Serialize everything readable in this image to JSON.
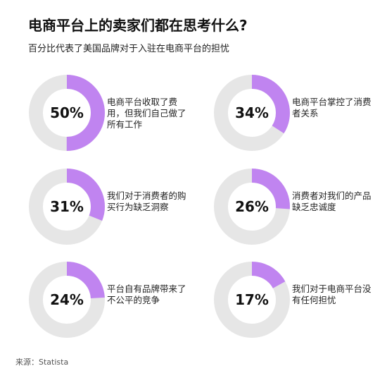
{
  "header": {
    "title": "电商平台上的卖家们都在思考什么?",
    "subtitle": "百分比代表了美国品牌对于入驻在电商平台的担忧"
  },
  "chart_data": {
    "type": "donut",
    "colors": {
      "filled": "#c084f0",
      "track": "#e6e6e6"
    },
    "items": [
      {
        "value": 50,
        "label_text": "50%",
        "label": "电商平台收取了费用，但我们自己做了所有工作"
      },
      {
        "value": 34,
        "label_text": "34%",
        "label": "电商平台掌控了消费者关系"
      },
      {
        "value": 31,
        "label_text": "31%",
        "label": "我们对于消费者的购买行为缺乏洞察"
      },
      {
        "value": 26,
        "label_text": "26%",
        "label": "消费者对我们的产品缺乏忠诚度"
      },
      {
        "value": 24,
        "label_text": "24%",
        "label": "平台自有品牌带来了不公平的竞争"
      },
      {
        "value": 17,
        "label_text": "17%",
        "label": "我们对于电商平台没有任何担忧"
      }
    ]
  },
  "footer": {
    "source": "来源：Statista"
  }
}
